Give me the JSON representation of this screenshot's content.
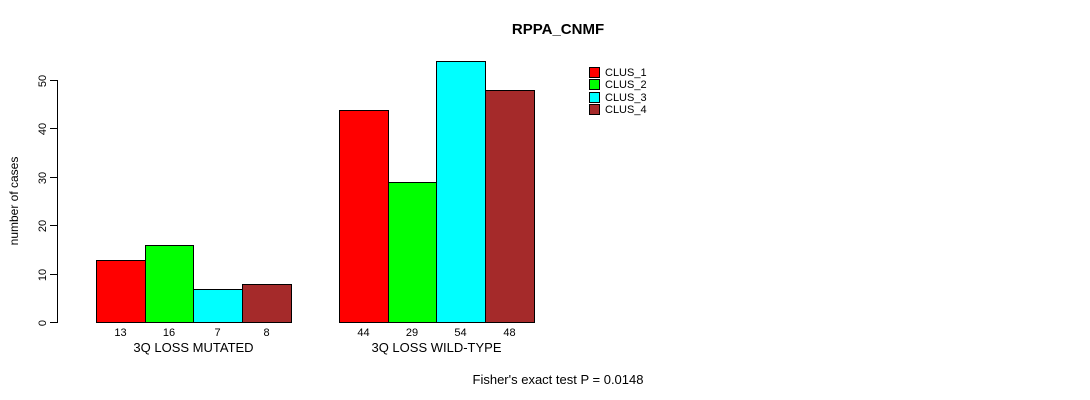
{
  "chart_data": {
    "type": "bar",
    "title": "RPPA_CNMF",
    "ylabel": "number of cases",
    "xlabel": "",
    "groups": [
      "3Q LOSS MUTATED",
      "3Q LOSS WILD-TYPE"
    ],
    "series": [
      {
        "name": "CLUS_1",
        "color": "#FF0000",
        "values": [
          13,
          44
        ]
      },
      {
        "name": "CLUS_2",
        "color": "#00FF00",
        "values": [
          16,
          29
        ]
      },
      {
        "name": "CLUS_3",
        "color": "#00FFFF",
        "values": [
          7,
          54
        ]
      },
      {
        "name": "CLUS_4",
        "color": "#A52A2A",
        "values": [
          8,
          48
        ]
      }
    ],
    "yticks": [
      0,
      10,
      20,
      30,
      40,
      50
    ],
    "ylim": [
      0,
      54
    ],
    "bar_value_labels": true,
    "grid": false,
    "legend_position": "top-right",
    "annotation": "Fisher's exact test P = 0.0148"
  }
}
